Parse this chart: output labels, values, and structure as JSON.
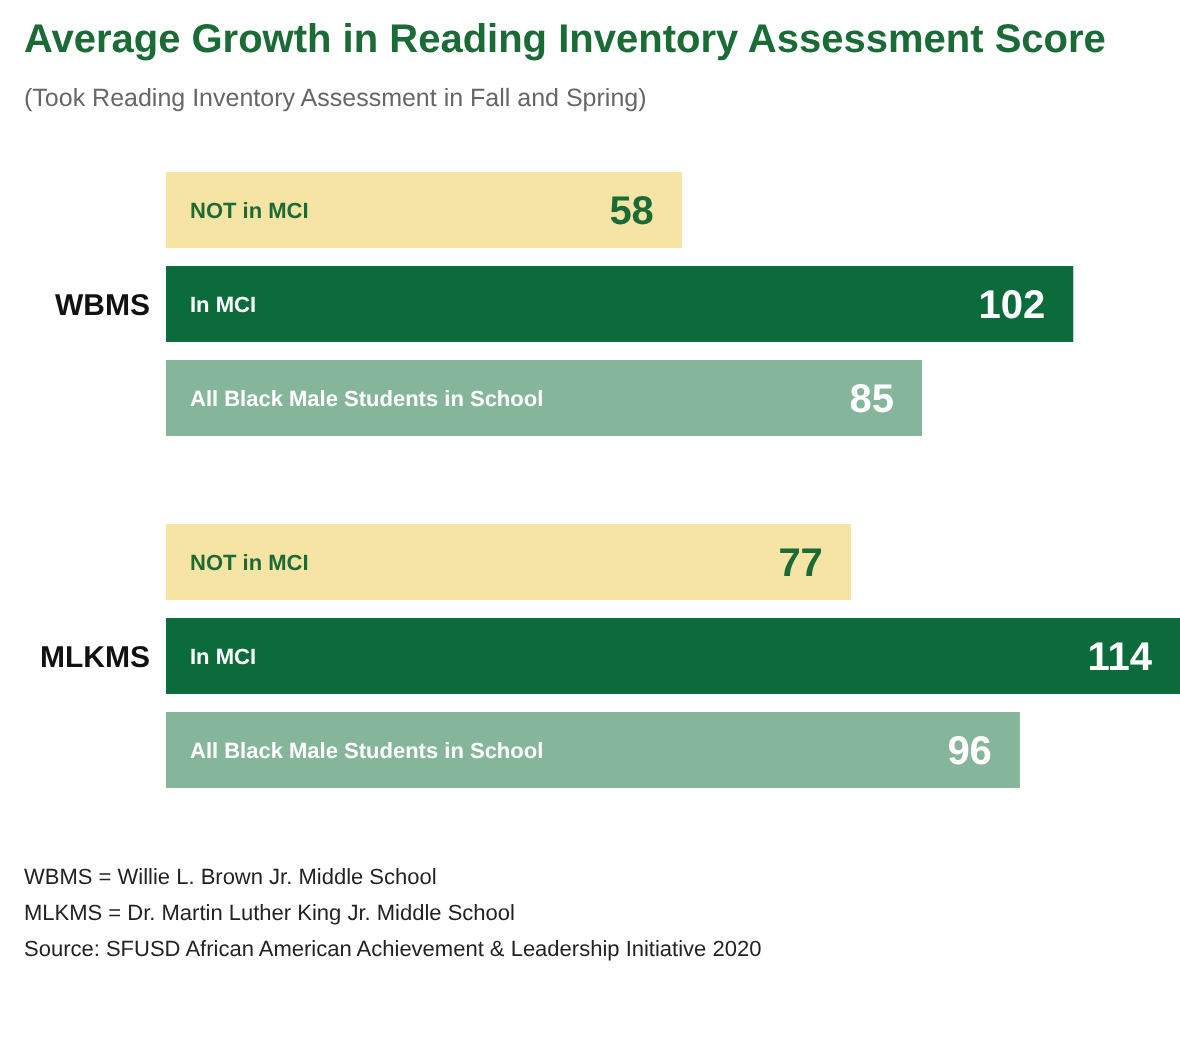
{
  "chart_data": {
    "type": "bar",
    "orientation": "horizontal",
    "title": "Average Growth in Reading Inventory Assessment Score",
    "subtitle": "(Took Reading Inventory Assessment in Fall and Spring)",
    "categories": [
      "WBMS",
      "MLKMS"
    ],
    "series": [
      {
        "name": "NOT in MCI",
        "color": "#f5e4a3",
        "values": [
          58,
          77
        ]
      },
      {
        "name": "In MCI",
        "color": "#0b6b3a",
        "values": [
          102,
          114
        ]
      },
      {
        "name": "All Black Male Students in School",
        "color": "#85b59a",
        "values": [
          85,
          96
        ]
      }
    ],
    "data_labels": true,
    "grid": false,
    "legend": false,
    "annotations": [
      "WBMS = Willie L. Brown Jr. Middle School",
      "MLKMS = Dr. Martin Luther King Jr. Middle School",
      "Source: SFUSD African American Achievement & Leadership Initiative 2020"
    ]
  }
}
